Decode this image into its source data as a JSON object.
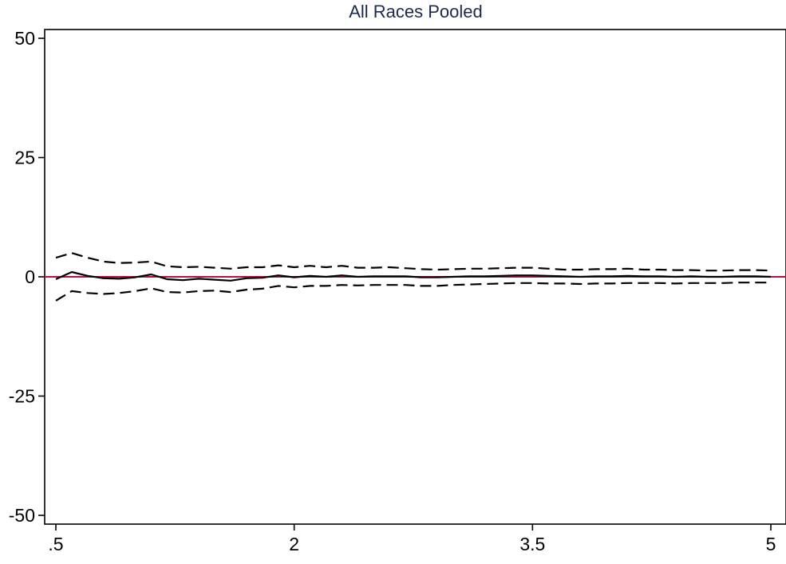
{
  "chart_data": {
    "type": "line",
    "title": "All Races Pooled",
    "xlabel": "",
    "ylabel": "",
    "xlim": [
      0.5,
      5
    ],
    "ylim": [
      -50,
      50
    ],
    "x_ticks": [
      {
        "value": 0.5,
        "label": ".5"
      },
      {
        "value": 2,
        "label": "2"
      },
      {
        "value": 3.5,
        "label": "3.5"
      },
      {
        "value": 5,
        "label": "5"
      }
    ],
    "y_ticks": [
      {
        "value": 50,
        "label": "50"
      },
      {
        "value": 25,
        "label": "25"
      },
      {
        "value": 0,
        "label": "0"
      },
      {
        "value": -25,
        "label": "-25"
      },
      {
        "value": -50,
        "label": "-50"
      }
    ],
    "reference_line": {
      "y": 0,
      "color": "#b5123e"
    },
    "grid": false,
    "x": [
      0.5,
      0.6,
      0.7,
      0.8,
      0.9,
      1.0,
      1.1,
      1.2,
      1.3,
      1.4,
      1.5,
      1.6,
      1.7,
      1.8,
      1.9,
      2.0,
      2.1,
      2.2,
      2.3,
      2.4,
      2.5,
      2.6,
      2.7,
      2.8,
      2.9,
      3.0,
      3.1,
      3.2,
      3.3,
      3.4,
      3.5,
      3.6,
      3.7,
      3.8,
      3.9,
      4.0,
      4.1,
      4.2,
      4.3,
      4.4,
      4.5,
      4.6,
      4.7,
      4.8,
      4.9,
      5.0
    ],
    "series": [
      {
        "style": "solid",
        "color": "#000000",
        "values": [
          -0.5,
          1.0,
          0.2,
          -0.3,
          -0.4,
          -0.1,
          0.5,
          -0.5,
          -0.7,
          -0.4,
          -0.6,
          -0.8,
          -0.3,
          -0.2,
          0.3,
          -0.1,
          0.2,
          0.0,
          0.3,
          0.0,
          0.1,
          0.1,
          0.1,
          -0.1,
          -0.1,
          0.0,
          0.1,
          0.1,
          0.2,
          0.3,
          0.3,
          0.2,
          0.1,
          0.0,
          0.1,
          0.1,
          0.2,
          0.1,
          0.1,
          0.0,
          0.1,
          0.0,
          0.0,
          0.1,
          0.1,
          0.0
        ]
      },
      {
        "style": "dashed",
        "color": "#000000",
        "values": [
          4.0,
          5.0,
          4.0,
          3.2,
          2.9,
          3.0,
          3.2,
          2.2,
          2.0,
          2.1,
          1.9,
          1.7,
          2.0,
          2.0,
          2.4,
          2.0,
          2.3,
          2.0,
          2.3,
          1.9,
          1.9,
          2.0,
          1.8,
          1.6,
          1.5,
          1.6,
          1.7,
          1.7,
          1.8,
          1.9,
          1.9,
          1.7,
          1.5,
          1.5,
          1.6,
          1.6,
          1.7,
          1.5,
          1.5,
          1.4,
          1.4,
          1.3,
          1.3,
          1.4,
          1.4,
          1.3
        ]
      },
      {
        "style": "dashed",
        "color": "#000000",
        "values": [
          -5.0,
          -3.0,
          -3.4,
          -3.6,
          -3.4,
          -3.0,
          -2.4,
          -3.2,
          -3.3,
          -3.0,
          -2.9,
          -3.2,
          -2.7,
          -2.5,
          -1.9,
          -2.2,
          -1.9,
          -1.9,
          -1.7,
          -1.8,
          -1.7,
          -1.7,
          -1.7,
          -1.9,
          -1.9,
          -1.7,
          -1.6,
          -1.5,
          -1.4,
          -1.3,
          -1.3,
          -1.4,
          -1.4,
          -1.5,
          -1.4,
          -1.4,
          -1.3,
          -1.3,
          -1.3,
          -1.4,
          -1.3,
          -1.3,
          -1.3,
          -1.2,
          -1.2,
          -1.2
        ]
      }
    ]
  },
  "colors": {
    "title": "#1a2a4f",
    "axis": "#000000",
    "reference": "#b5123e"
  }
}
